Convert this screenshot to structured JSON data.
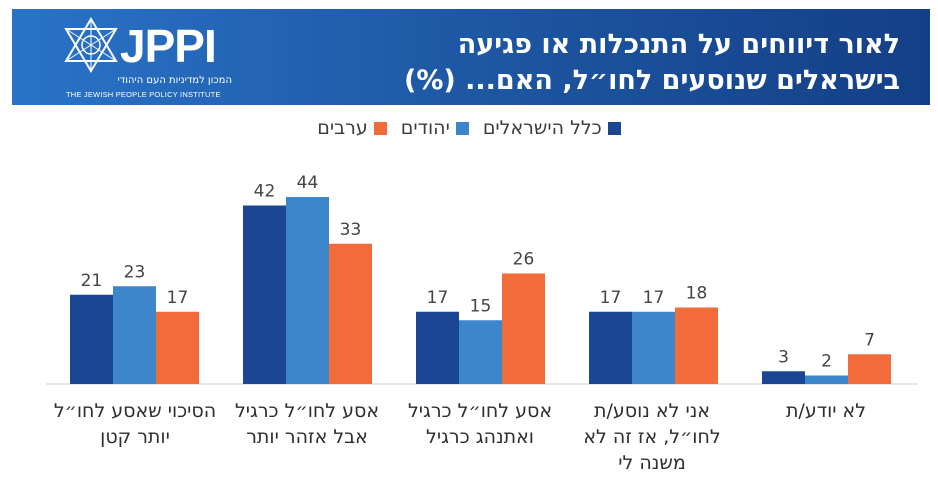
{
  "chart_data": {
    "type": "bar",
    "title": "לאור דיווחים על התנכלות או פגיעה בישראלים שנוסעים לחו״ל, האם... (%)",
    "categories": [
      "הסיכוי שאסע לחו״ל יותר קטן",
      "אסע לחו״ל כרגיל אבל אזהר יותר",
      "אסע לחו״ל כרגיל ואתנהג כרגיל",
      "אני לא נוסע/ת לחו״ל, אז זה לא משנה לי",
      "לא יודע/ת"
    ],
    "series": [
      {
        "name": "כלל הישראלים",
        "color": "#1b4692",
        "values": [
          21,
          42,
          17,
          17,
          3
        ]
      },
      {
        "name": "יהודים",
        "color": "#3d86cc",
        "values": [
          23,
          44,
          15,
          17,
          2
        ]
      },
      {
        "name": "ערבים",
        "color": "#f26b3a",
        "values": [
          17,
          33,
          26,
          18,
          7
        ]
      }
    ],
    "ylim": [
      0,
      44
    ],
    "grid": false,
    "legend_position": "top-center"
  },
  "logo": {
    "wordmark": "JPPI",
    "hebrew_name": "המכון למדיניות העם היהודי",
    "english_name": "THE JEWISH PEOPLE POLICY INSTITUTE"
  }
}
